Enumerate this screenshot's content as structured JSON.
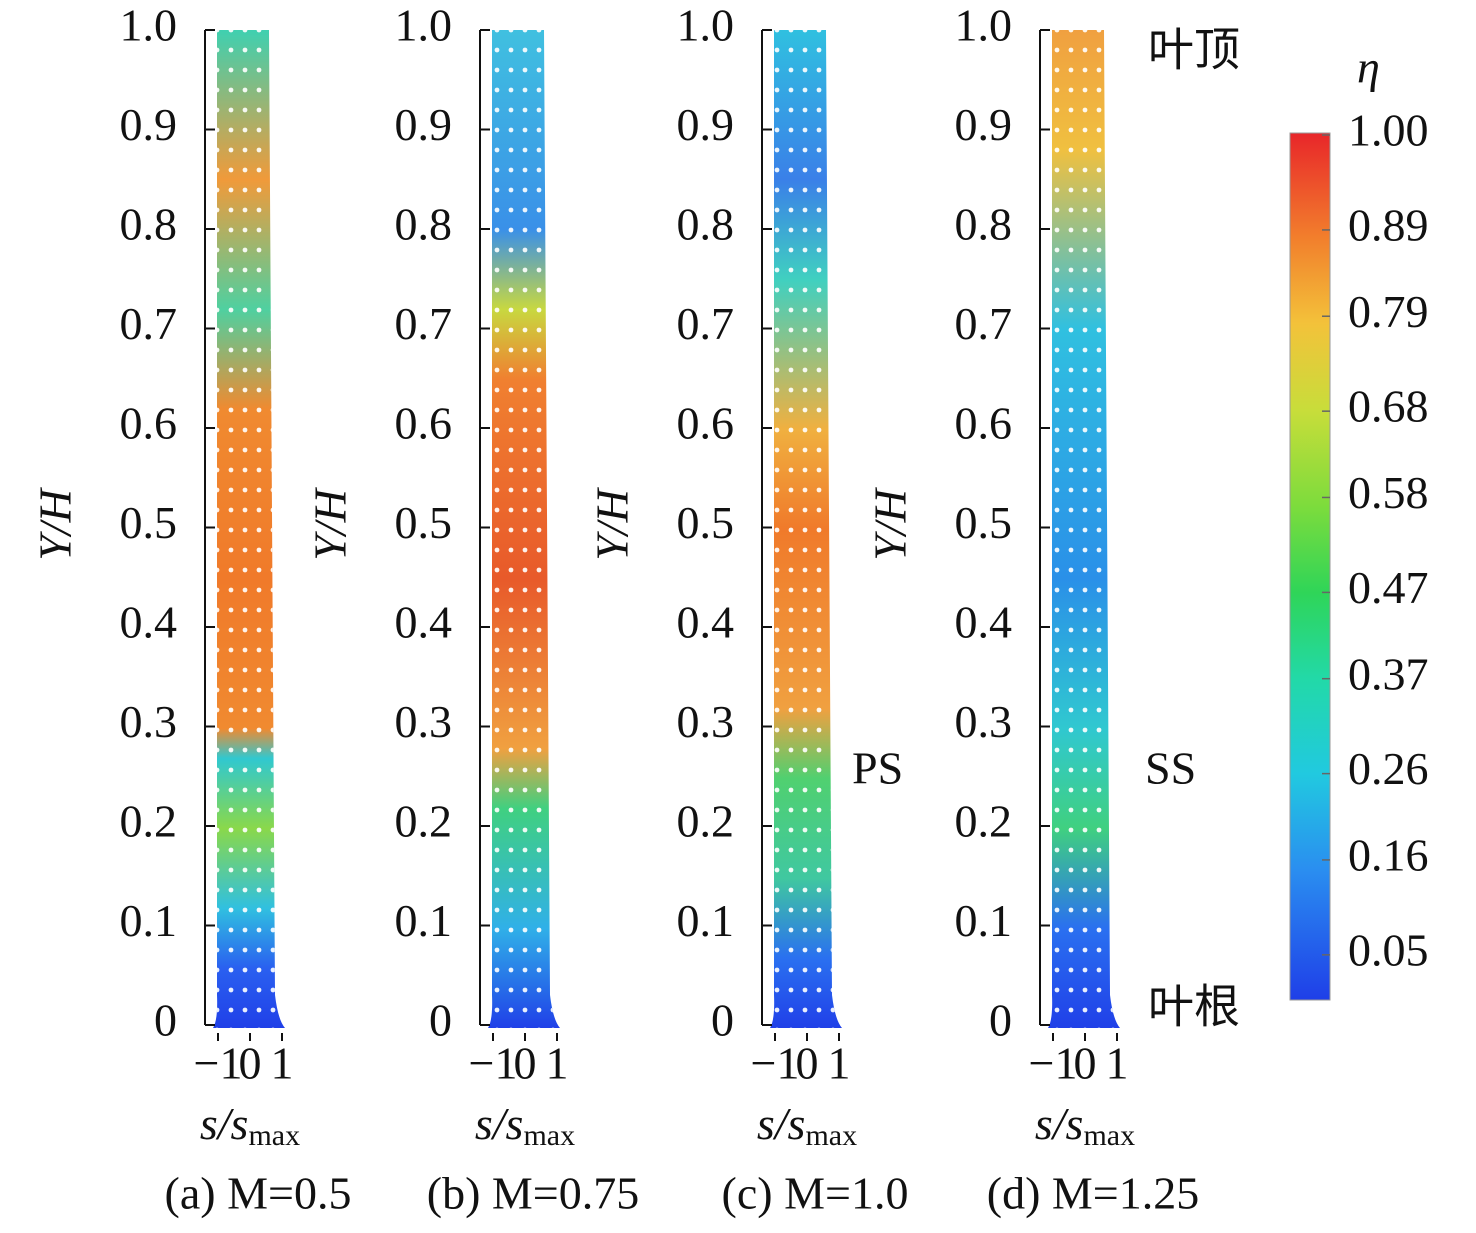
{
  "chart_data": [
    {
      "type": "contour",
      "caption": "(a) M=0.5",
      "ylabel": "Y/H",
      "xlabel": "s/s",
      "xlabel_sub": "max",
      "ylim": [
        0,
        1
      ],
      "yticks": [
        0,
        0.1,
        0.2,
        0.3,
        0.4,
        0.5,
        0.6,
        0.7,
        0.8,
        0.9,
        {
          "value": 1,
          "label": "1.0"
        }
      ],
      "xlim": [
        -1,
        1
      ],
      "xticks": [
        {
          "value": -1,
          "label": "−1"
        },
        0,
        1
      ]
    },
    {
      "type": "contour",
      "caption": "(b) M=0.75",
      "ylabel": "Y/H",
      "xlabel": "s/s",
      "xlabel_sub": "max",
      "ylim": [
        0,
        1
      ],
      "yticks": [
        0,
        0.1,
        0.2,
        0.3,
        0.4,
        0.5,
        0.6,
        0.7,
        0.8,
        0.9,
        {
          "value": 1,
          "label": "1.0"
        }
      ],
      "xlim": [
        -1,
        1
      ],
      "xticks": [
        {
          "value": -1,
          "label": "−1"
        },
        0,
        1
      ]
    },
    {
      "type": "contour",
      "caption": "(c) M=1.0",
      "ylabel": "Y/H",
      "xlabel": "s/s",
      "xlabel_sub": "max",
      "ylim": [
        0,
        1
      ],
      "yticks": [
        0,
        0.1,
        0.2,
        0.3,
        0.4,
        0.5,
        0.6,
        0.7,
        0.8,
        0.9,
        {
          "value": 1,
          "label": "1.0"
        }
      ],
      "xlim": [
        -1,
        1
      ],
      "xticks": [
        {
          "value": -1,
          "label": "−1"
        },
        0,
        1
      ]
    },
    {
      "type": "contour",
      "caption": "(d) M=1.25",
      "ylabel": "Y/H",
      "xlabel": "s/s",
      "xlabel_sub": "max",
      "ylim": [
        0,
        1
      ],
      "yticks": [
        0,
        0.1,
        0.2,
        0.3,
        0.4,
        0.5,
        0.6,
        0.7,
        0.8,
        0.9,
        {
          "value": 1,
          "label": "1.0"
        }
      ],
      "xlim": [
        -1,
        1
      ],
      "xticks": [
        {
          "value": -1,
          "label": "−1"
        },
        0,
        1
      ]
    }
  ],
  "colorbar": {
    "label": "η",
    "clim": [
      0,
      1
    ],
    "ticks": [
      {
        "value": 1,
        "label": "1.00"
      },
      0.89,
      0.79,
      0.68,
      0.58,
      0.47,
      0.37,
      0.26,
      0.16,
      0.05
    ]
  },
  "annotations": {
    "tip": "叶顶",
    "root": "叶根",
    "pressure_side": "PS",
    "suction_side": "SS"
  }
}
